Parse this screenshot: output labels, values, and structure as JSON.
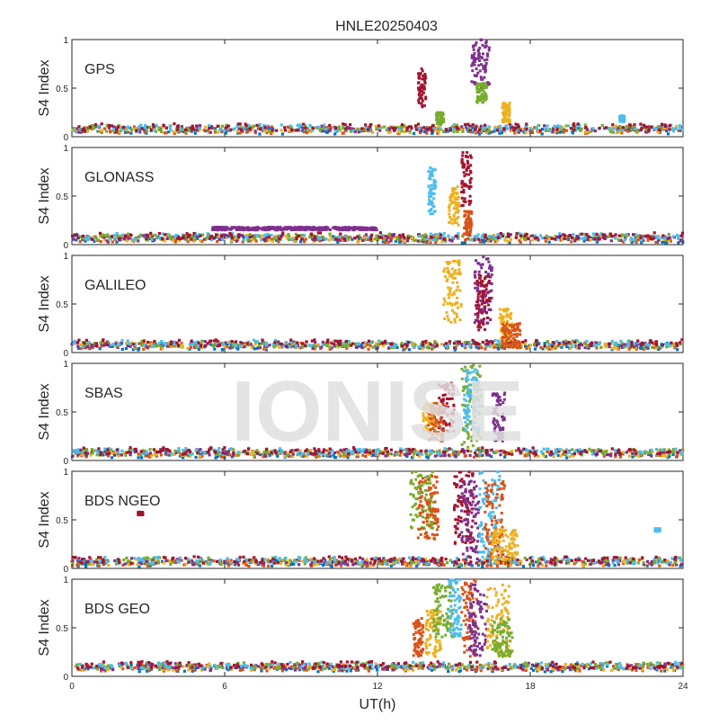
{
  "chart_data": {
    "type": "scatter",
    "title": "HNLE20250403",
    "xlabel": "UT(h)",
    "ylabel": "S4 Index",
    "xlim": [
      0,
      24
    ],
    "x_ticks": [
      0,
      6,
      12,
      18,
      24
    ],
    "ylim": [
      0,
      1
    ],
    "y_ticks": [
      0,
      0.5,
      1
    ],
    "watermark": "IONISE",
    "grid": false,
    "series_colors": [
      "#0072bd",
      "#d95319",
      "#edb120",
      "#7e2f8e",
      "#77ac30",
      "#4dbeee",
      "#a2142f"
    ],
    "panels": [
      {
        "name": "GPS",
        "baseline": 0.08,
        "clusters": [
          {
            "x": [
              13.6,
              13.9
            ],
            "y": [
              0.3,
              0.7
            ],
            "color": "#a2142f"
          },
          {
            "x": [
              15.7,
              16.4
            ],
            "y": [
              0.5,
              1.0
            ],
            "color": "#7e2f8e"
          },
          {
            "x": [
              15.9,
              16.3
            ],
            "y": [
              0.35,
              0.55
            ],
            "color": "#77ac30"
          },
          {
            "x": [
              16.9,
              17.2
            ],
            "y": [
              0.15,
              0.35
            ],
            "color": "#edb120"
          },
          {
            "x": [
              14.3,
              14.6
            ],
            "y": [
              0.12,
              0.25
            ],
            "color": "#77ac30"
          },
          {
            "x": [
              21.5,
              21.7
            ],
            "y": [
              0.15,
              0.22
            ],
            "color": "#4dbeee"
          }
        ]
      },
      {
        "name": "GLONASS",
        "baseline": 0.07,
        "clusters": [
          {
            "x": [
              14.0,
              14.3
            ],
            "y": [
              0.3,
              0.8
            ],
            "color": "#4dbeee"
          },
          {
            "x": [
              14.8,
              15.2
            ],
            "y": [
              0.2,
              0.6
            ],
            "color": "#edb120"
          },
          {
            "x": [
              15.3,
              15.7
            ],
            "y": [
              0.4,
              0.95
            ],
            "color": "#a2142f"
          },
          {
            "x": [
              15.4,
              15.7
            ],
            "y": [
              0.1,
              0.35
            ],
            "color": "#d95319"
          },
          {
            "x": [
              5.5,
              12.0
            ],
            "y": [
              0.15,
              0.18
            ],
            "color": "#7e2f8e"
          }
        ]
      },
      {
        "name": "GALILEO",
        "baseline": 0.08,
        "clusters": [
          {
            "x": [
              14.6,
              15.3
            ],
            "y": [
              0.3,
              0.95
            ],
            "color": "#edb120"
          },
          {
            "x": [
              15.8,
              16.5
            ],
            "y": [
              0.3,
              1.0
            ],
            "color": "#7e2f8e"
          },
          {
            "x": [
              15.9,
              16.4
            ],
            "y": [
              0.2,
              0.8
            ],
            "color": "#a2142f"
          },
          {
            "x": [
              16.8,
              17.3
            ],
            "y": [
              0.1,
              0.45
            ],
            "color": "#edb120"
          },
          {
            "x": [
              16.9,
              17.6
            ],
            "y": [
              0.05,
              0.3
            ],
            "color": "#d95319"
          }
        ]
      },
      {
        "name": "SBAS",
        "baseline": 0.08,
        "clusters": [
          {
            "x": [
              13.8,
              14.3
            ],
            "y": [
              0.3,
              0.6
            ],
            "color": "#edb120"
          },
          {
            "x": [
              14.4,
              15.0
            ],
            "y": [
              0.3,
              0.8
            ],
            "color": "#a2142f"
          },
          {
            "x": [
              15.3,
              16.1
            ],
            "y": [
              0.1,
              1.0
            ],
            "color": "#77ac30"
          },
          {
            "x": [
              15.4,
              16.0
            ],
            "y": [
              0.3,
              0.95
            ],
            "color": "#4dbeee"
          },
          {
            "x": [
              16.5,
              17.0
            ],
            "y": [
              0.2,
              0.7
            ],
            "color": "#7e2f8e"
          },
          {
            "x": [
              14.0,
              14.6
            ],
            "y": [
              0.2,
              0.6
            ],
            "color": "#d95319"
          }
        ]
      },
      {
        "name": "BDS NGEO",
        "baseline": 0.07,
        "clusters": [
          {
            "x": [
              13.3,
              14.2
            ],
            "y": [
              0.4,
              1.0
            ],
            "color": "#77ac30"
          },
          {
            "x": [
              13.6,
              14.4
            ],
            "y": [
              0.3,
              0.95
            ],
            "color": "#d95319"
          },
          {
            "x": [
              15.0,
              15.8
            ],
            "y": [
              0.25,
              1.0
            ],
            "color": "#a2142f"
          },
          {
            "x": [
              15.3,
              16.0
            ],
            "y": [
              0.1,
              0.9
            ],
            "color": "#7e2f8e"
          },
          {
            "x": [
              16.0,
              16.8
            ],
            "y": [
              0.1,
              1.0
            ],
            "color": "#4dbeee"
          },
          {
            "x": [
              16.2,
              17.0
            ],
            "y": [
              0.1,
              0.9
            ],
            "color": "#d95319"
          },
          {
            "x": [
              16.5,
              17.5
            ],
            "y": [
              0.05,
              0.4
            ],
            "color": "#edb120"
          },
          {
            "x": [
              2.6,
              2.8
            ],
            "y": [
              0.55,
              0.58
            ],
            "color": "#a2142f"
          },
          {
            "x": [
              22.9,
              23.1
            ],
            "y": [
              0.38,
              0.41
            ],
            "color": "#4dbeee"
          }
        ]
      },
      {
        "name": "BDS GEO",
        "baseline": 0.1,
        "clusters": [
          {
            "x": [
              13.4,
              13.8
            ],
            "y": [
              0.2,
              0.6
            ],
            "color": "#d95319"
          },
          {
            "x": [
              13.9,
              14.5
            ],
            "y": [
              0.2,
              0.7
            ],
            "color": "#edb120"
          },
          {
            "x": [
              14.2,
              15.0
            ],
            "y": [
              0.4,
              0.95
            ],
            "color": "#77ac30"
          },
          {
            "x": [
              14.8,
              15.3
            ],
            "y": [
              0.4,
              1.0
            ],
            "color": "#4dbeee"
          },
          {
            "x": [
              15.3,
              15.9
            ],
            "y": [
              0.2,
              1.0
            ],
            "color": "#d95319"
          },
          {
            "x": [
              15.6,
              16.3
            ],
            "y": [
              0.2,
              0.95
            ],
            "color": "#7e2f8e"
          },
          {
            "x": [
              16.3,
              17.2
            ],
            "y": [
              0.2,
              0.95
            ],
            "color": "#edb120"
          },
          {
            "x": [
              16.5,
              17.3
            ],
            "y": [
              0.2,
              0.6
            ],
            "color": "#77ac30"
          }
        ]
      }
    ]
  }
}
